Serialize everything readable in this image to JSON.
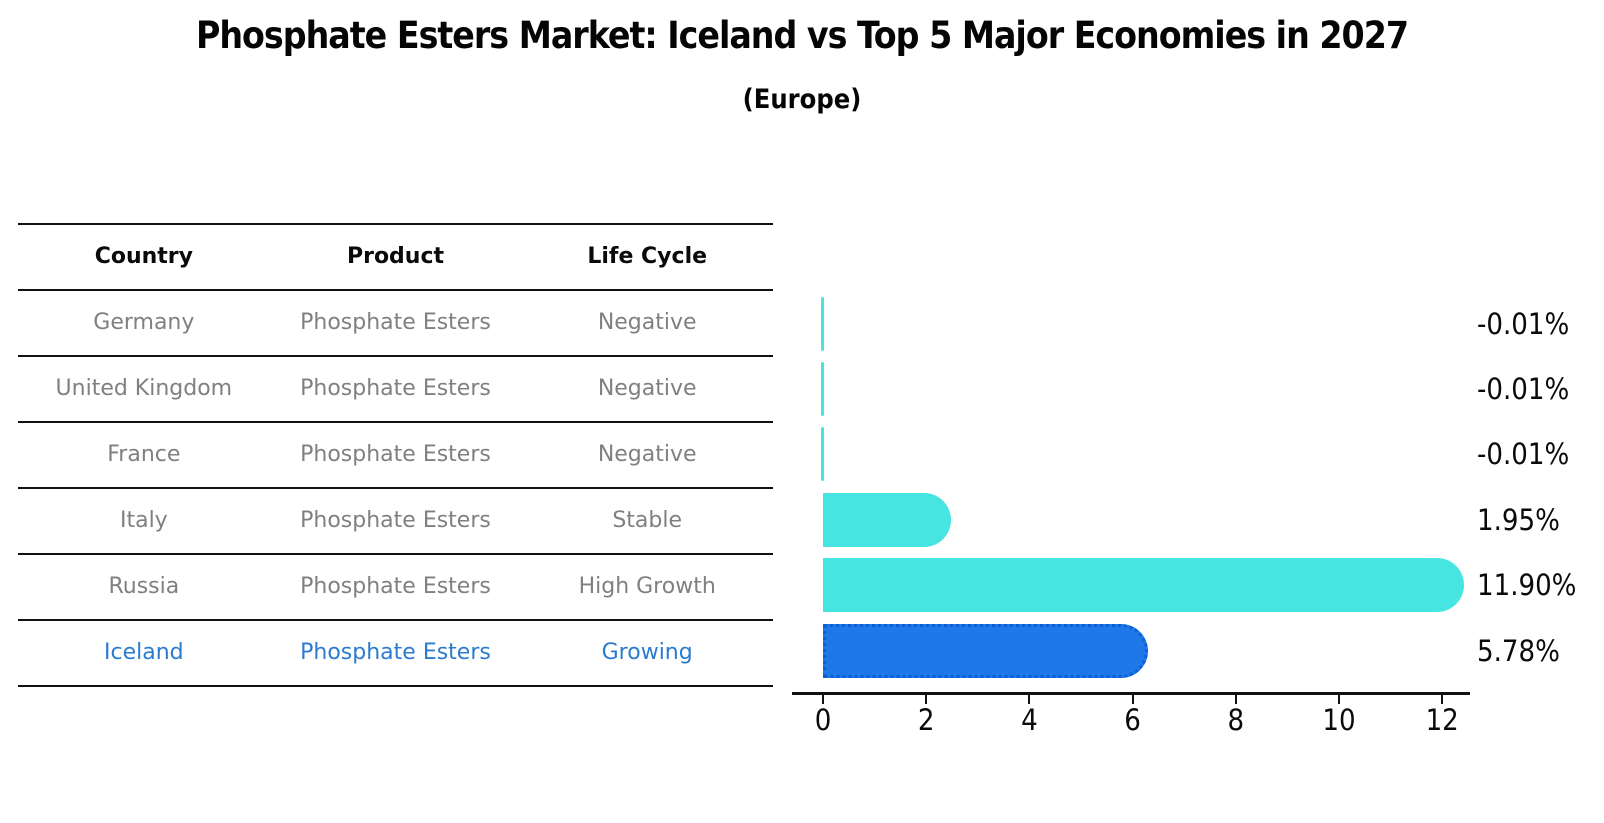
{
  "title": "Phosphate Esters Market: Iceland vs Top 5 Major Economies in 2027",
  "subtitle": "(Europe)",
  "table": {
    "headers": [
      "Country",
      "Product",
      "Life Cycle"
    ],
    "rows": [
      {
        "country": "Germany",
        "product": "Phosphate Esters",
        "life_cycle": "Negative",
        "highlight": false
      },
      {
        "country": "United Kingdom",
        "product": "Phosphate Esters",
        "life_cycle": "Negative",
        "highlight": false
      },
      {
        "country": "France",
        "product": "Phosphate Esters",
        "life_cycle": "Negative",
        "highlight": false
      },
      {
        "country": "Italy",
        "product": "Phosphate Esters",
        "life_cycle": "Stable",
        "highlight": false
      },
      {
        "country": "Russia",
        "product": "Phosphate Esters",
        "life_cycle": "High Growth",
        "highlight": false
      },
      {
        "country": "Iceland",
        "product": "Phosphate Esters",
        "life_cycle": "Growing",
        "highlight": true
      }
    ]
  },
  "chart_data": {
    "type": "bar",
    "orientation": "horizontal",
    "categories": [
      "Germany",
      "United Kingdom",
      "France",
      "Italy",
      "Russia",
      "Iceland"
    ],
    "values": [
      -0.01,
      -0.01,
      -0.01,
      1.95,
      11.9,
      5.78
    ],
    "value_labels": [
      "-0.01%",
      "-0.01%",
      "-0.01%",
      "1.95%",
      "11.90%",
      "5.78%"
    ],
    "highlight_index": 5,
    "x_ticks": [
      0,
      2,
      4,
      6,
      8,
      10,
      12
    ],
    "xlim": [
      -0.6,
      12.5
    ],
    "grid": false,
    "legend": "none",
    "xlabel": "",
    "ylabel": ""
  },
  "colors": {
    "bar_color": "#46E5E2",
    "iceland_bar_color": "#1E78E8",
    "iceland_border_color": "#0D5FD6",
    "highlight_text_color": "#2B7BCE",
    "row_text_color": "#808080",
    "line_color": "#111111"
  }
}
